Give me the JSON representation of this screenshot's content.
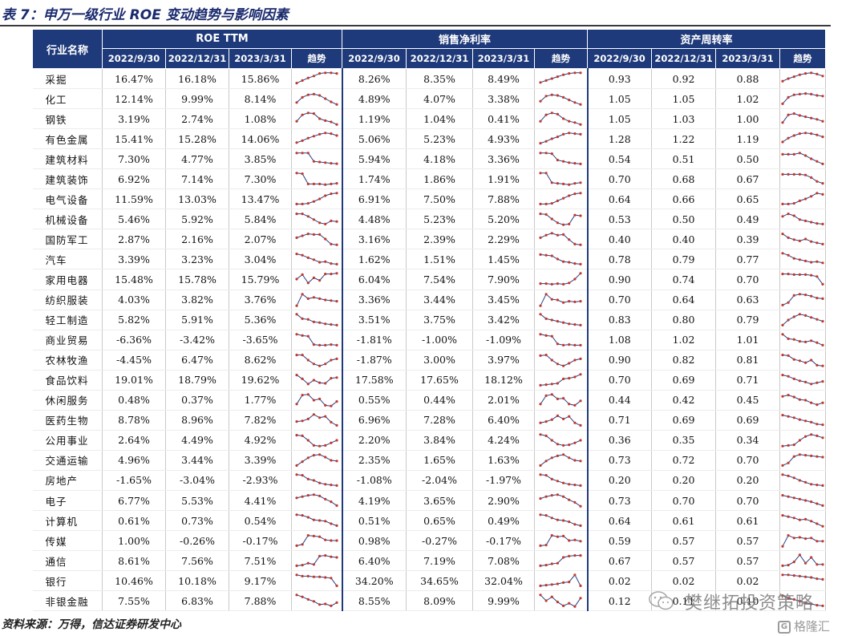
{
  "title": "表 7：申万一级行业 ROE 变动趋势与影响因素",
  "header": {
    "industry_col": "行业名称",
    "groups": [
      "ROE TTM",
      "销售净利率",
      "资产周转率"
    ],
    "dates": [
      "2022/9/30",
      "2022/12/31",
      "2023/3/31"
    ],
    "trend_label": "趋势"
  },
  "rows": [
    {
      "name": "采掘",
      "roe": [
        "16.47%",
        "16.18%",
        "15.86%"
      ],
      "npm": [
        "8.26%",
        "8.35%",
        "8.49%"
      ],
      "turn": [
        "0.93",
        "0.92",
        "0.88"
      ],
      "t1": [
        0.15,
        0.35,
        0.55,
        0.7,
        0.9,
        0.95,
        0.95,
        0.9
      ],
      "t2": [
        0.2,
        0.35,
        0.5,
        0.65,
        0.8,
        0.9,
        0.95,
        0.95
      ],
      "t3": [
        0.3,
        0.5,
        0.65,
        0.8,
        0.9,
        0.95,
        0.85,
        0.7
      ]
    },
    {
      "name": "化工",
      "roe": [
        "12.14%",
        "9.99%",
        "8.14%"
      ],
      "npm": [
        "4.89%",
        "4.07%",
        "3.38%"
      ],
      "turn": [
        "1.05",
        "1.05",
        "1.02"
      ],
      "t1": [
        0.2,
        0.6,
        0.8,
        0.85,
        0.75,
        0.5,
        0.25,
        0.05
      ],
      "t2": [
        0.3,
        0.7,
        0.8,
        0.75,
        0.6,
        0.4,
        0.2,
        0.05
      ],
      "t3": [
        0.1,
        0.6,
        0.8,
        0.85,
        0.9,
        0.85,
        0.75,
        0.7
      ]
    },
    {
      "name": "钢铁",
      "roe": [
        "3.19%",
        "2.74%",
        "1.08%"
      ],
      "npm": [
        "1.19%",
        "1.04%",
        "0.41%"
      ],
      "turn": [
        "1.05",
        "1.03",
        "1.00"
      ],
      "t1": [
        0.3,
        0.8,
        0.95,
        0.9,
        0.5,
        0.35,
        0.25,
        0.05
      ],
      "t2": [
        0.3,
        0.8,
        0.95,
        0.85,
        0.5,
        0.3,
        0.2,
        0.05
      ],
      "t3": [
        0.2,
        0.8,
        0.9,
        0.75,
        0.65,
        0.55,
        0.45,
        0.3
      ]
    },
    {
      "name": "有色金属",
      "roe": [
        "15.41%",
        "15.28%",
        "14.06%"
      ],
      "npm": [
        "5.06%",
        "5.23%",
        "4.93%"
      ],
      "turn": [
        "1.28",
        "1.22",
        "1.19"
      ],
      "t1": [
        0.2,
        0.35,
        0.55,
        0.7,
        0.85,
        0.95,
        0.9,
        0.75
      ],
      "t2": [
        0.15,
        0.3,
        0.5,
        0.65,
        0.85,
        0.95,
        0.9,
        0.85
      ],
      "t3": [
        0.25,
        0.55,
        0.75,
        0.9,
        0.95,
        0.9,
        0.8,
        0.65
      ]
    },
    {
      "name": "建筑材料",
      "roe": [
        "7.30%",
        "4.77%",
        "3.85%"
      ],
      "npm": [
        "5.94%",
        "4.18%",
        "3.36%"
      ],
      "turn": [
        "0.54",
        "0.51",
        "0.50"
      ],
      "t1": [
        0.95,
        0.95,
        0.95,
        0.3,
        0.25,
        0.2,
        0.15,
        0.12
      ],
      "t2": [
        0.95,
        0.95,
        0.9,
        0.4,
        0.3,
        0.2,
        0.15,
        0.1
      ],
      "t3": [
        0.85,
        0.85,
        0.85,
        0.95,
        0.75,
        0.5,
        0.3,
        0.1
      ]
    },
    {
      "name": "建筑装饰",
      "roe": [
        "6.92%",
        "7.14%",
        "7.30%"
      ],
      "npm": [
        "1.74%",
        "1.86%",
        "1.91%"
      ],
      "turn": [
        "0.70",
        "0.68",
        "0.67"
      ],
      "t1": [
        0.95,
        0.9,
        0.1,
        0.1,
        0.1,
        0.05,
        0.1,
        0.15
      ],
      "t2": [
        0.95,
        0.95,
        0.2,
        0.15,
        0.1,
        0.05,
        0.15,
        0.2
      ],
      "t3": [
        0.85,
        0.85,
        0.85,
        0.85,
        0.8,
        0.6,
        0.3,
        0.15
      ]
    },
    {
      "name": "电气设备",
      "roe": [
        "11.59%",
        "13.03%",
        "13.47%"
      ],
      "npm": [
        "6.91%",
        "7.50%",
        "7.88%"
      ],
      "turn": [
        "0.64",
        "0.66",
        "0.65"
      ],
      "t1": [
        0.1,
        0.1,
        0.15,
        0.3,
        0.5,
        0.75,
        0.9,
        0.95
      ],
      "t2": [
        0.1,
        0.1,
        0.15,
        0.35,
        0.55,
        0.75,
        0.9,
        0.95
      ],
      "t3": [
        0.1,
        0.1,
        0.15,
        0.35,
        0.5,
        0.7,
        0.95,
        0.85
      ]
    },
    {
      "name": "机械设备",
      "roe": [
        "5.46%",
        "5.92%",
        "5.84%"
      ],
      "npm": [
        "4.48%",
        "5.23%",
        "5.20%"
      ],
      "turn": [
        "0.53",
        "0.50",
        "0.49"
      ],
      "t1": [
        0.9,
        0.9,
        0.7,
        0.45,
        0.2,
        0.1,
        0.35,
        0.3
      ],
      "t2": [
        0.9,
        0.85,
        0.5,
        0.2,
        0.05,
        0.1,
        0.8,
        0.75
      ],
      "t3": [
        0.7,
        0.9,
        0.75,
        0.45,
        0.35,
        0.25,
        0.15,
        0.1
      ]
    },
    {
      "name": "国防军工",
      "roe": [
        "2.87%",
        "2.16%",
        "2.07%"
      ],
      "npm": [
        "3.16%",
        "2.39%",
        "2.29%"
      ],
      "turn": [
        "0.40",
        "0.40",
        "0.39"
      ],
      "t1": [
        0.6,
        0.75,
        0.9,
        0.85,
        0.85,
        0.5,
        0.1,
        0.05
      ],
      "t2": [
        0.6,
        0.8,
        0.95,
        0.8,
        0.85,
        0.45,
        0.1,
        0.05
      ],
      "t3": [
        0.9,
        0.6,
        0.45,
        0.35,
        0.5,
        0.3,
        0.2,
        0.1
      ]
    },
    {
      "name": "汽车",
      "roe": [
        "3.39%",
        "3.23%",
        "3.04%"
      ],
      "npm": [
        "1.62%",
        "1.51%",
        "1.45%"
      ],
      "turn": [
        "0.78",
        "0.79",
        "0.77"
      ],
      "t1": [
        0.9,
        0.8,
        0.6,
        0.45,
        0.25,
        0.3,
        0.15,
        0.1
      ],
      "t2": [
        0.85,
        0.8,
        0.75,
        0.5,
        0.3,
        0.25,
        0.15,
        0.1
      ],
      "t3": [
        0.95,
        0.8,
        0.55,
        0.45,
        0.35,
        0.25,
        0.3,
        0.2
      ]
    },
    {
      "name": "家用电器",
      "roe": [
        "15.48%",
        "15.78%",
        "15.79%"
      ],
      "npm": [
        "6.04%",
        "7.54%",
        "7.90%"
      ],
      "turn": [
        "0.90",
        "0.74",
        "0.70"
      ],
      "t1": [
        0.5,
        0.85,
        0.2,
        0.6,
        0.4,
        0.9,
        0.9,
        0.95
      ],
      "t2": [
        0.15,
        0.15,
        0.1,
        0.15,
        0.1,
        0.2,
        0.5,
        0.95
      ],
      "t3": [
        0.9,
        0.9,
        0.85,
        0.85,
        0.85,
        0.8,
        0.7,
        0.1
      ]
    },
    {
      "name": "纺织服装",
      "roe": [
        "4.03%",
        "3.82%",
        "3.76%"
      ],
      "npm": [
        "3.36%",
        "3.44%",
        "3.45%"
      ],
      "turn": [
        "0.70",
        "0.64",
        "0.63"
      ],
      "t1": [
        0.05,
        0.95,
        0.6,
        0.7,
        0.6,
        0.5,
        0.45,
        0.4
      ],
      "t2": [
        0.05,
        0.95,
        0.55,
        0.5,
        0.3,
        0.4,
        0.35,
        0.4
      ],
      "t3": [
        0.1,
        0.3,
        0.85,
        0.95,
        0.9,
        0.8,
        0.65,
        0.6
      ]
    },
    {
      "name": "轻工制造",
      "roe": [
        "5.82%",
        "5.91%",
        "5.36%"
      ],
      "npm": [
        "3.51%",
        "3.75%",
        "3.42%"
      ],
      "turn": [
        "0.83",
        "0.80",
        "0.79"
      ],
      "t1": [
        0.95,
        0.6,
        0.55,
        0.35,
        0.3,
        0.2,
        0.15,
        0.1
      ],
      "t2": [
        0.95,
        0.6,
        0.5,
        0.4,
        0.3,
        0.2,
        0.15,
        0.1
      ],
      "t3": [
        0.1,
        0.5,
        0.75,
        0.95,
        0.85,
        0.7,
        0.55,
        0.4
      ]
    },
    {
      "name": "商业贸易",
      "roe": [
        "-6.36%",
        "-3.42%",
        "-3.65%"
      ],
      "npm": [
        "-1.81%",
        "-1.00%",
        "-1.09%"
      ],
      "turn": [
        "1.08",
        "1.02",
        "1.01"
      ],
      "t1": [
        0.95,
        0.85,
        0.8,
        0.15,
        0.1,
        0.1,
        0.15,
        0.1
      ],
      "t2": [
        0.95,
        0.85,
        0.8,
        0.2,
        0.1,
        0.15,
        0.1,
        0.1
      ],
      "t3": [
        0.95,
        0.6,
        0.55,
        0.4,
        0.35,
        0.45,
        0.3,
        0.1
      ]
    },
    {
      "name": "农林牧渔",
      "roe": [
        "-4.45%",
        "6.47%",
        "8.62%"
      ],
      "npm": [
        "-1.87%",
        "3.00%",
        "3.97%"
      ],
      "turn": [
        "0.90",
        "0.82",
        "0.81"
      ],
      "t1": [
        0.9,
        0.9,
        0.5,
        0.2,
        0.05,
        0.2,
        0.5,
        0.6
      ],
      "t2": [
        0.85,
        0.9,
        0.5,
        0.2,
        0.05,
        0.25,
        0.5,
        0.6
      ],
      "t3": [
        0.9,
        0.85,
        0.55,
        0.45,
        0.3,
        0.5,
        0.1,
        0.05
      ]
    },
    {
      "name": "食品饮料",
      "roe": [
        "19.01%",
        "18.79%",
        "19.62%"
      ],
      "npm": [
        "17.58%",
        "17.65%",
        "18.12%"
      ],
      "turn": [
        "0.70",
        "0.69",
        "0.71"
      ],
      "t1": [
        0.9,
        0.6,
        0.2,
        0.5,
        0.3,
        0.25,
        0.65,
        0.7
      ],
      "t2": [
        0.1,
        0.15,
        0.2,
        0.25,
        0.6,
        0.65,
        0.75,
        0.95
      ],
      "t3": [
        0.9,
        0.8,
        0.6,
        0.45,
        0.35,
        0.2,
        0.3,
        0.4
      ]
    },
    {
      "name": "休闲服务",
      "roe": [
        "0.48%",
        "0.37%",
        "1.77%"
      ],
      "npm": [
        "0.55%",
        "0.44%",
        "2.01%"
      ],
      "turn": [
        "0.44",
        "0.42",
        "0.45"
      ],
      "t1": [
        0.2,
        0.9,
        0.95,
        0.5,
        0.6,
        0.1,
        0.05,
        0.4
      ],
      "t2": [
        0.2,
        0.85,
        0.95,
        0.6,
        0.65,
        0.2,
        0.1,
        0.45
      ],
      "t3": [
        0.8,
        0.9,
        0.75,
        0.55,
        0.5,
        0.3,
        0.15,
        0.3
      ]
    },
    {
      "name": "医药生物",
      "roe": [
        "8.78%",
        "8.96%",
        "7.82%"
      ],
      "npm": [
        "6.96%",
        "7.28%",
        "6.40%"
      ],
      "turn": [
        "0.71",
        "0.69",
        "0.69"
      ],
      "t1": [
        0.4,
        0.45,
        0.6,
        0.95,
        0.7,
        0.8,
        0.35,
        0.1
      ],
      "t2": [
        0.3,
        0.4,
        0.55,
        0.85,
        0.6,
        0.8,
        0.3,
        0.1
      ],
      "t3": [
        0.9,
        0.8,
        0.7,
        0.55,
        0.45,
        0.35,
        0.2,
        0.15
      ]
    },
    {
      "name": "公用事业",
      "roe": [
        "2.64%",
        "4.49%",
        "4.92%"
      ],
      "npm": [
        "2.20%",
        "3.84%",
        "4.24%"
      ],
      "turn": [
        "0.36",
        "0.35",
        "0.34"
      ],
      "t1": [
        0.9,
        0.85,
        0.5,
        0.1,
        0.05,
        0.1,
        0.3,
        0.5
      ],
      "t2": [
        0.95,
        0.85,
        0.5,
        0.2,
        0.1,
        0.15,
        0.3,
        0.5
      ],
      "t3": [
        0.05,
        0.1,
        0.15,
        0.5,
        0.8,
        0.95,
        0.85,
        0.7
      ]
    },
    {
      "name": "交通运输",
      "roe": [
        "4.96%",
        "3.44%",
        "3.39%"
      ],
      "npm": [
        "2.35%",
        "1.65%",
        "1.63%"
      ],
      "turn": [
        "0.73",
        "0.72",
        "0.70"
      ],
      "t1": [
        0.1,
        0.4,
        0.7,
        0.9,
        0.95,
        0.75,
        0.5,
        0.45
      ],
      "t2": [
        0.1,
        0.45,
        0.7,
        0.85,
        0.95,
        0.7,
        0.5,
        0.45
      ],
      "t3": [
        0.1,
        0.3,
        0.8,
        0.95,
        0.9,
        0.85,
        0.8,
        0.75
      ]
    },
    {
      "name": "房地产",
      "roe": [
        "-1.65%",
        "-3.04%",
        "-2.93%"
      ],
      "npm": [
        "-1.08%",
        "-2.04%",
        "-1.97%"
      ],
      "turn": [
        "0.20",
        "0.20",
        "0.20"
      ],
      "t1": [
        0.95,
        0.9,
        0.6,
        0.5,
        0.3,
        0.2,
        0.15,
        0.1
      ],
      "t2": [
        0.95,
        0.9,
        0.6,
        0.45,
        0.3,
        0.2,
        0.15,
        0.1
      ],
      "t3": [
        0.95,
        0.85,
        0.7,
        0.5,
        0.35,
        0.2,
        0.15,
        0.1
      ]
    },
    {
      "name": "电子",
      "roe": [
        "6.77%",
        "5.53%",
        "4.41%"
      ],
      "npm": [
        "4.19%",
        "3.65%",
        "2.90%"
      ],
      "turn": [
        "0.73",
        "0.70",
        "0.70"
      ],
      "t1": [
        0.7,
        0.8,
        0.9,
        0.95,
        0.85,
        0.6,
        0.4,
        0.1
      ],
      "t2": [
        0.65,
        0.8,
        0.9,
        0.95,
        0.8,
        0.55,
        0.35,
        0.05
      ],
      "t3": [
        0.9,
        0.8,
        0.7,
        0.6,
        0.5,
        0.4,
        0.25,
        0.1
      ]
    },
    {
      "name": "计算机",
      "roe": [
        "0.61%",
        "0.73%",
        "0.54%"
      ],
      "npm": [
        "0.51%",
        "0.65%",
        "0.49%"
      ],
      "turn": [
        "0.64",
        "0.61",
        "0.61"
      ],
      "t1": [
        0.95,
        0.9,
        0.75,
        0.55,
        0.5,
        0.45,
        0.25,
        0.1
      ],
      "t2": [
        0.95,
        0.9,
        0.7,
        0.55,
        0.5,
        0.4,
        0.2,
        0.1
      ],
      "t3": [
        0.9,
        0.8,
        0.7,
        0.55,
        0.6,
        0.45,
        0.25,
        0.05
      ]
    },
    {
      "name": "传媒",
      "roe": [
        "1.00%",
        "-0.26%",
        "-0.17%"
      ],
      "npm": [
        "0.98%",
        "-0.27%",
        "-0.17%"
      ],
      "turn": [
        "0.59",
        "0.57",
        "0.57"
      ],
      "t1": [
        0.1,
        0.2,
        0.9,
        0.85,
        0.8,
        0.55,
        0.5,
        0.5
      ],
      "t2": [
        0.1,
        0.15,
        0.9,
        0.8,
        0.85,
        0.5,
        0.55,
        0.45
      ],
      "t3": [
        0.05,
        0.9,
        0.7,
        0.75,
        0.65,
        0.7,
        0.45,
        0.45
      ]
    },
    {
      "name": "通信",
      "roe": [
        "8.61%",
        "7.56%",
        "7.51%"
      ],
      "npm": [
        "6.40%",
        "7.19%",
        "7.08%"
      ],
      "turn": [
        "0.67",
        "0.57",
        "0.57"
      ],
      "t1": [
        0.1,
        0.15,
        0.3,
        0.2,
        0.85,
        0.9,
        0.8,
        0.75
      ],
      "t2": [
        0.1,
        0.15,
        0.25,
        0.3,
        0.75,
        0.85,
        0.9,
        0.9
      ],
      "t3": [
        0.1,
        0.15,
        0.4,
        0.95,
        0.3,
        0.75,
        0.2,
        0.2
      ]
    },
    {
      "name": "银行",
      "roe": [
        "10.46%",
        "10.18%",
        "9.17%"
      ],
      "npm": [
        "34.20%",
        "34.65%",
        "32.04%"
      ],
      "turn": [
        "0.02",
        "0.02",
        "0.02"
      ],
      "t1": [
        0.95,
        0.85,
        0.85,
        0.8,
        0.8,
        0.75,
        0.7,
        0.1
      ],
      "t2": [
        0.1,
        0.15,
        0.2,
        0.25,
        0.35,
        0.4,
        0.95,
        0.1
      ],
      "t3": [
        0.95,
        0.95,
        0.9,
        0.85,
        0.8,
        0.75,
        0.65,
        0.6
      ]
    },
    {
      "name": "非银金融",
      "roe": [
        "7.55%",
        "6.83%",
        "7.88%"
      ],
      "npm": [
        "8.55%",
        "8.09%",
        "9.99%"
      ],
      "turn": [
        "0.12",
        "0.11",
        "0.10"
      ],
      "t1": [
        0.95,
        0.8,
        0.6,
        0.45,
        0.2,
        0.25,
        0.1,
        0.35
      ],
      "t2": [
        0.95,
        0.5,
        0.8,
        0.4,
        0.1,
        0.3,
        0.05,
        0.7
      ],
      "t3": [
        0.9,
        0.7,
        0.6,
        0.45,
        0.35,
        0.25,
        0.15,
        0.1
      ]
    }
  ],
  "footer": "资料来源：万得，信达证券研发中心",
  "watermark": {
    "text": "樊继拓投资策略",
    "brand": "格隆汇",
    "brand_mark": "G"
  }
}
